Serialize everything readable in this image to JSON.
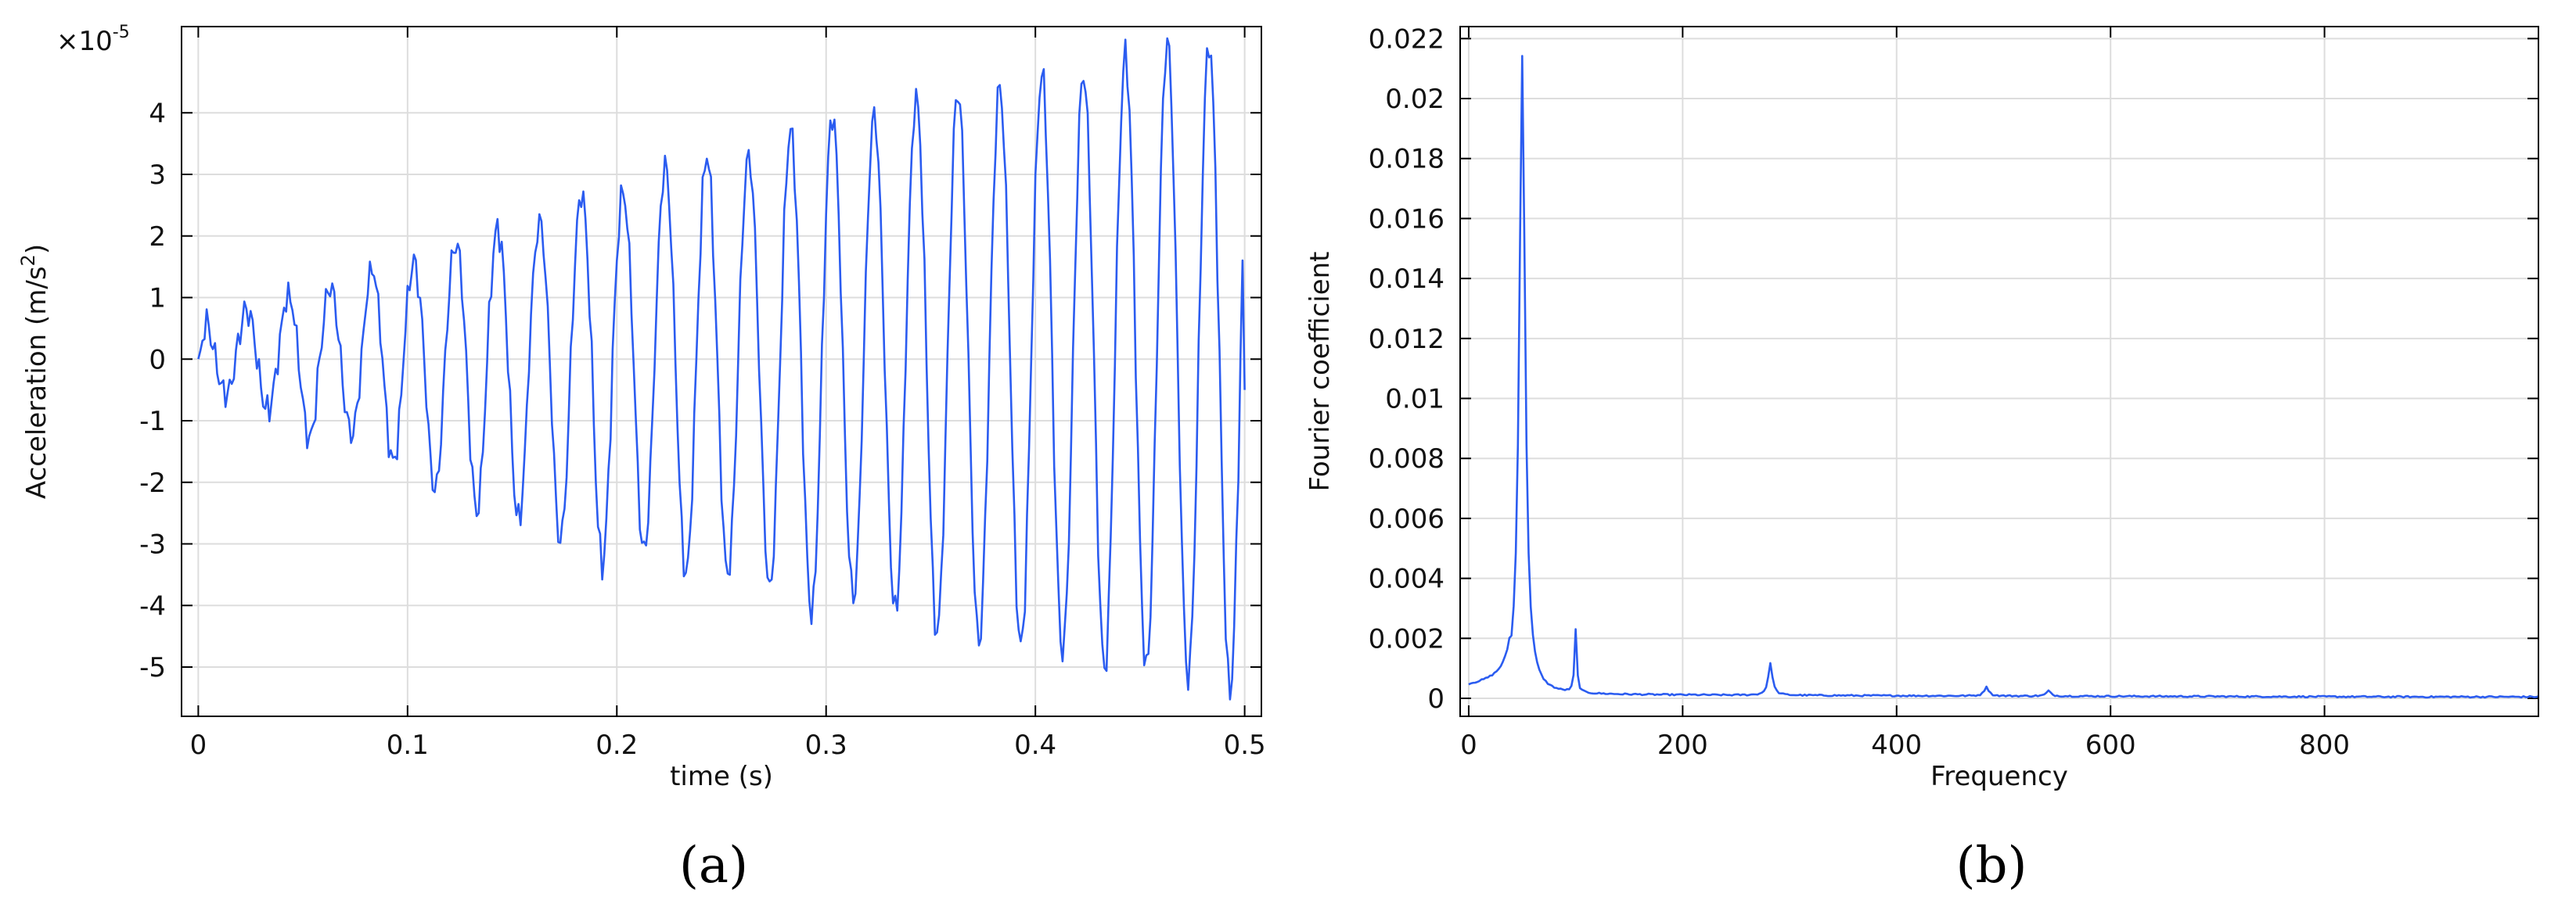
{
  "chart_data": [
    {
      "type": "line",
      "panel_label": "(a)",
      "xlabel": "time (s)",
      "ylabel_prefix": "Acceleration (m/s",
      "ylabel_superscript": "2",
      "ylabel_suffix": ")",
      "y_multiplier_base": "×10",
      "y_multiplier_exponent": "-5",
      "xlim": [
        -0.008,
        0.508
      ],
      "ylim": [
        -5.8,
        5.4
      ],
      "xticks": [
        0,
        0.1,
        0.2,
        0.3,
        0.4,
        0.5
      ],
      "xtick_labels": [
        "0",
        "0.1",
        "0.2",
        "0.3",
        "0.4",
        "0.5"
      ],
      "yticks": [
        -5,
        -4,
        -3,
        -2,
        -1,
        0,
        1,
        2,
        3,
        4
      ],
      "ytick_labels": [
        "-5",
        "-4",
        "-3",
        "-2",
        "-1",
        "0",
        "1",
        "2",
        "3",
        "4"
      ],
      "grid": true,
      "series_color": "#2b5cf0",
      "series": [
        {
          "x_start": 0,
          "x_end": 0.5,
          "sample_interval": 0.001,
          "dominant_frequency_hz": 50,
          "envelope_peak_near_t0": 0.4,
          "envelope_peak_near_t_end": 5.3,
          "end_value": -0.5,
          "approx_positive_peaks": [
            {
              "t": 0.003,
              "y": 0.6
            },
            {
              "t": 0.027,
              "y": 0.85
            },
            {
              "t": 0.047,
              "y": 1.05
            },
            {
              "t": 0.067,
              "y": 1.25
            },
            {
              "t": 0.087,
              "y": 1.5
            },
            {
              "t": 0.107,
              "y": 1.6
            },
            {
              "t": 0.127,
              "y": 2.0
            },
            {
              "t": 0.147,
              "y": 2.2
            },
            {
              "t": 0.167,
              "y": 2.25
            },
            {
              "t": 0.187,
              "y": 2.8
            },
            {
              "t": 0.207,
              "y": 2.7
            },
            {
              "t": 0.227,
              "y": 3.2
            },
            {
              "t": 0.247,
              "y": 3.3
            },
            {
              "t": 0.267,
              "y": 3.35
            },
            {
              "t": 0.287,
              "y": 3.8
            },
            {
              "t": 0.307,
              "y": 4.0
            },
            {
              "t": 0.327,
              "y": 3.9
            },
            {
              "t": 0.347,
              "y": 4.3
            },
            {
              "t": 0.367,
              "y": 4.4
            },
            {
              "t": 0.387,
              "y": 4.4
            },
            {
              "t": 0.407,
              "y": 4.7
            },
            {
              "t": 0.427,
              "y": 4.65
            },
            {
              "t": 0.447,
              "y": 5.0
            },
            {
              "t": 0.467,
              "y": 5.2
            },
            {
              "t": 0.487,
              "y": 5.1
            }
          ],
          "approx_negative_troughs": [
            {
              "t": 0.013,
              "y": -0.55
            },
            {
              "t": 0.033,
              "y": -0.8
            },
            {
              "t": 0.053,
              "y": -1.3
            },
            {
              "t": 0.073,
              "y": -1.2
            },
            {
              "t": 0.093,
              "y": -1.7
            },
            {
              "t": 0.113,
              "y": -2.1
            },
            {
              "t": 0.133,
              "y": -2.45
            },
            {
              "t": 0.153,
              "y": -2.6
            },
            {
              "t": 0.173,
              "y": -2.95
            },
            {
              "t": 0.193,
              "y": -3.3
            },
            {
              "t": 0.213,
              "y": -3.1
            },
            {
              "t": 0.233,
              "y": -3.5
            },
            {
              "t": 0.253,
              "y": -3.5
            },
            {
              "t": 0.273,
              "y": -3.7
            },
            {
              "t": 0.293,
              "y": -4.15
            },
            {
              "t": 0.313,
              "y": -3.85
            },
            {
              "t": 0.333,
              "y": -4.1
            },
            {
              "t": 0.353,
              "y": -4.45
            },
            {
              "t": 0.373,
              "y": -4.6
            },
            {
              "t": 0.393,
              "y": -4.65
            },
            {
              "t": 0.413,
              "y": -4.75
            },
            {
              "t": 0.433,
              "y": -5.05
            },
            {
              "t": 0.453,
              "y": -5.0
            },
            {
              "t": 0.473,
              "y": -5.15
            },
            {
              "t": 0.493,
              "y": -5.4
            }
          ]
        }
      ]
    },
    {
      "type": "line",
      "panel_label": "(b)",
      "xlabel": "Frequency",
      "ylabel": "Fourier coefficient",
      "xlim": [
        -8,
        1000
      ],
      "ylim": [
        -0.0006,
        0.0224
      ],
      "xticks": [
        0,
        200,
        400,
        600,
        800
      ],
      "xtick_labels": [
        "0",
        "200",
        "400",
        "600",
        "800"
      ],
      "yticks": [
        0,
        0.002,
        0.004,
        0.006,
        0.008,
        0.01,
        0.012,
        0.014,
        0.016,
        0.018,
        0.02,
        0.022
      ],
      "ytick_labels": [
        "0",
        "0.002",
        "0.004",
        "0.006",
        "0.008",
        "0.01",
        "0.012",
        "0.014",
        "0.016",
        "0.018",
        "0.02",
        "0.022"
      ],
      "grid": true,
      "series_color": "#2b5cf0",
      "series": [
        {
          "x_start": 0,
          "x_end": 1000,
          "sample_interval": 2,
          "baseline_at_0": 0.0004,
          "baseline_mid": 0.00012,
          "baseline_high_freq": 5e-05,
          "peaks": [
            {
              "x": 50,
              "y": 0.0219
            },
            {
              "x": 100,
              "y": 0.0022
            },
            {
              "x": 282,
              "y": 0.00115
            },
            {
              "x": 484,
              "y": 0.0004
            },
            {
              "x": 542,
              "y": 0.00025
            }
          ]
        }
      ]
    }
  ]
}
